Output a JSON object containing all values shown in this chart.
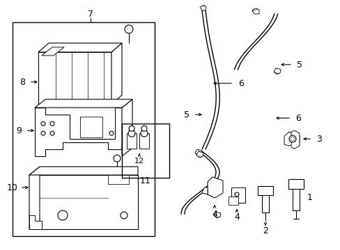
{
  "bg_color": "#ffffff",
  "line_color": "#000000",
  "lw": 0.8,
  "lw2": 1.0,
  "fig_width": 4.89,
  "fig_height": 3.6,
  "dpi": 100
}
